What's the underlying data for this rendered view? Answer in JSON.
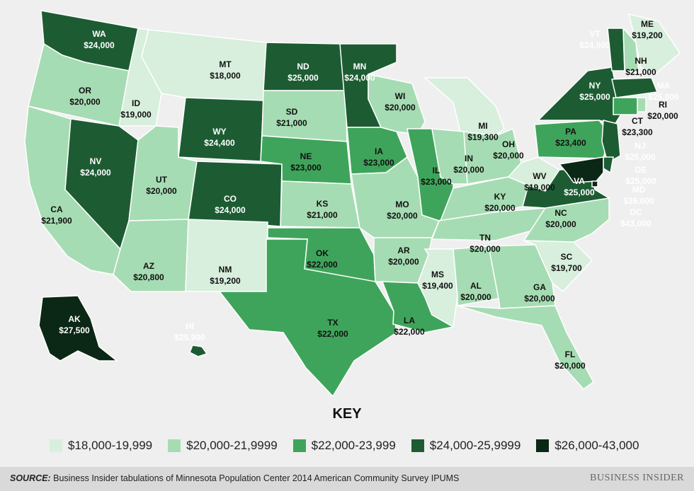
{
  "colors": {
    "b1": "#d7efdc",
    "b2": "#a6dcb3",
    "b3": "#3fa45b",
    "b4": "#1d5c33",
    "b5": "#0b2715"
  },
  "legend": {
    "title": "KEY",
    "items": [
      {
        "label": "$18,000-19,999",
        "bucket": "b1"
      },
      {
        "label": "$20,000-21,9999",
        "bucket": "b2"
      },
      {
        "label": "$22,000-23,999",
        "bucket": "b3"
      },
      {
        "label": "$24,000-25,9999",
        "bucket": "b4"
      },
      {
        "label": "$26,000-43,000",
        "bucket": "b5"
      }
    ]
  },
  "footer": {
    "source_label": "SOURCE:",
    "source_text": "Business Insider tabulations of Minnesota Population Center 2014 American Community Survey IPUMS",
    "brand": "BUSINESS INSIDER"
  },
  "states": [
    {
      "abbr": "WA",
      "value": "$24,000",
      "bucket": "b4"
    },
    {
      "abbr": "OR",
      "value": "$20,000",
      "bucket": "b2"
    },
    {
      "abbr": "CA",
      "value": "$21,900",
      "bucket": "b2"
    },
    {
      "abbr": "NV",
      "value": "$24,000",
      "bucket": "b4"
    },
    {
      "abbr": "ID",
      "value": "$19,000",
      "bucket": "b1"
    },
    {
      "abbr": "MT",
      "value": "$18,000",
      "bucket": "b1"
    },
    {
      "abbr": "WY",
      "value": "$24,400",
      "bucket": "b4"
    },
    {
      "abbr": "UT",
      "value": "$20,000",
      "bucket": "b2"
    },
    {
      "abbr": "AZ",
      "value": "$20,800",
      "bucket": "b2"
    },
    {
      "abbr": "CO",
      "value": "$24,000",
      "bucket": "b4"
    },
    {
      "abbr": "NM",
      "value": "$19,200",
      "bucket": "b1"
    },
    {
      "abbr": "ND",
      "value": "$25,000",
      "bucket": "b4"
    },
    {
      "abbr": "SD",
      "value": "$21,000",
      "bucket": "b2"
    },
    {
      "abbr": "NE",
      "value": "$23,000",
      "bucket": "b3"
    },
    {
      "abbr": "KS",
      "value": "$21,000",
      "bucket": "b2"
    },
    {
      "abbr": "OK",
      "value": "$22,000",
      "bucket": "b3"
    },
    {
      "abbr": "TX",
      "value": "$22,000",
      "bucket": "b3"
    },
    {
      "abbr": "MN",
      "value": "$24,000",
      "bucket": "b4"
    },
    {
      "abbr": "IA",
      "value": "$23,000",
      "bucket": "b3"
    },
    {
      "abbr": "MO",
      "value": "$20,000",
      "bucket": "b2"
    },
    {
      "abbr": "AR",
      "value": "$20,000",
      "bucket": "b2"
    },
    {
      "abbr": "LA",
      "value": "$22,000",
      "bucket": "b3"
    },
    {
      "abbr": "WI",
      "value": "$20,000",
      "bucket": "b2"
    },
    {
      "abbr": "IL",
      "value": "$23,000",
      "bucket": "b3"
    },
    {
      "abbr": "MI",
      "value": "$19,300",
      "bucket": "b1"
    },
    {
      "abbr": "IN",
      "value": "$20,000",
      "bucket": "b2"
    },
    {
      "abbr": "OH",
      "value": "$20,000",
      "bucket": "b2"
    },
    {
      "abbr": "KY",
      "value": "$20,000",
      "bucket": "b2"
    },
    {
      "abbr": "TN",
      "value": "$20,000",
      "bucket": "b2"
    },
    {
      "abbr": "MS",
      "value": "$19,400",
      "bucket": "b1"
    },
    {
      "abbr": "AL",
      "value": "$20,000",
      "bucket": "b2"
    },
    {
      "abbr": "GA",
      "value": "$20,000",
      "bucket": "b2"
    },
    {
      "abbr": "FL",
      "value": "$20,000",
      "bucket": "b2"
    },
    {
      "abbr": "SC",
      "value": "$19,700",
      "bucket": "b1"
    },
    {
      "abbr": "NC",
      "value": "$20,000",
      "bucket": "b2"
    },
    {
      "abbr": "VA",
      "value": "$25,000",
      "bucket": "b4"
    },
    {
      "abbr": "WV",
      "value": "$19,000",
      "bucket": "b1"
    },
    {
      "abbr": "PA",
      "value": "$23,400",
      "bucket": "b3"
    },
    {
      "abbr": "NY",
      "value": "$25,000",
      "bucket": "b4"
    },
    {
      "abbr": "VT",
      "value": "$24,000",
      "bucket": "b4"
    },
    {
      "abbr": "NH",
      "value": "$21,000",
      "bucket": "b2"
    },
    {
      "abbr": "ME",
      "value": "$19,200",
      "bucket": "b1"
    },
    {
      "abbr": "MA",
      "value": "$25,000",
      "bucket": "b4"
    },
    {
      "abbr": "RI",
      "value": "$20,000",
      "bucket": "b2"
    },
    {
      "abbr": "CT",
      "value": "$23,300",
      "bucket": "b3"
    },
    {
      "abbr": "NJ",
      "value": "$25,000",
      "bucket": "b4"
    },
    {
      "abbr": "DE",
      "value": "$25,000",
      "bucket": "b4"
    },
    {
      "abbr": "MD",
      "value": "$26,000",
      "bucket": "b5"
    },
    {
      "abbr": "DC",
      "value": "$43,000",
      "bucket": "b5"
    },
    {
      "abbr": "AK",
      "value": "$27,500",
      "bucket": "b5"
    },
    {
      "abbr": "HI",
      "value": "$25,900",
      "bucket": "b4"
    }
  ]
}
